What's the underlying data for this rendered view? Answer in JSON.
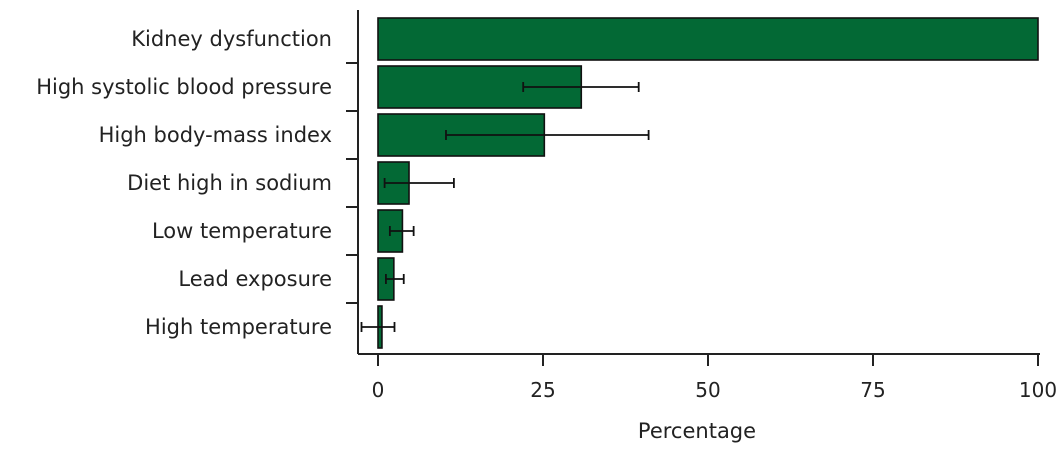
{
  "chart_data": {
    "type": "bar",
    "orientation": "horizontal",
    "categories": [
      "Kidney dysfunction",
      "High systolic blood pressure",
      "High body-mass index",
      "Diet high in sodium",
      "Low temperature",
      "Lead exposure",
      "High temperature"
    ],
    "values": [
      100,
      30.8,
      25.2,
      4.7,
      3.7,
      2.4,
      0.6
    ],
    "error_low": [
      null,
      22,
      10.3,
      1.0,
      1.8,
      1.2,
      -2.5
    ],
    "error_high": [
      null,
      39.5,
      41,
      11.5,
      5.4,
      3.9,
      2.5
    ],
    "xlabel": "Percentage",
    "xlim": [
      -3,
      100
    ],
    "xticks": [
      0,
      25,
      50,
      75,
      100
    ],
    "grid": false,
    "colors": {
      "bar": "#036935",
      "stroke": "#111111"
    }
  }
}
